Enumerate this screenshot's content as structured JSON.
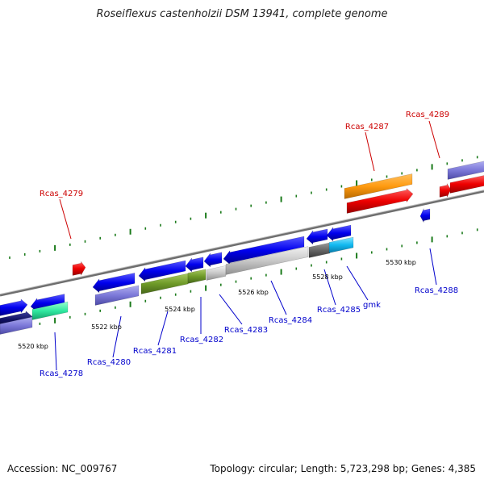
{
  "title": "Roseiflexus castenholzii DSM 13941, complete genome",
  "accession": "Accession: NC_009767",
  "summary": "Topology: circular; Length: 5,723,298 bp; Genes: 4,385",
  "colors": {
    "backbone": "#888888",
    "tick": "#1a7a1a",
    "label_top_strand": "#cc0000",
    "label_bottom_strand": "#0000cc"
  },
  "position_labels": [
    "5520 kbp",
    "5522 kbp",
    "5524 kbp",
    "5526 kbp",
    "5528 kbp",
    "5530 kbp"
  ],
  "gene_labels": [
    {
      "name": "Rcas_4278",
      "strand": "bottom"
    },
    {
      "name": "Rcas_4279",
      "strand": "top"
    },
    {
      "name": "Rcas_4280",
      "strand": "bottom"
    },
    {
      "name": "Rcas_4281",
      "strand": "bottom"
    },
    {
      "name": "Rcas_4282",
      "strand": "bottom"
    },
    {
      "name": "Rcas_4283",
      "strand": "bottom"
    },
    {
      "name": "Rcas_4284",
      "strand": "bottom"
    },
    {
      "name": "Rcas_4285",
      "strand": "bottom"
    },
    {
      "name": "gmk",
      "strand": "bottom"
    },
    {
      "name": "Rcas_4287",
      "strand": "top"
    },
    {
      "name": "Rcas_4288",
      "strand": "bottom"
    },
    {
      "name": "Rcas_4289",
      "strand": "top"
    }
  ]
}
